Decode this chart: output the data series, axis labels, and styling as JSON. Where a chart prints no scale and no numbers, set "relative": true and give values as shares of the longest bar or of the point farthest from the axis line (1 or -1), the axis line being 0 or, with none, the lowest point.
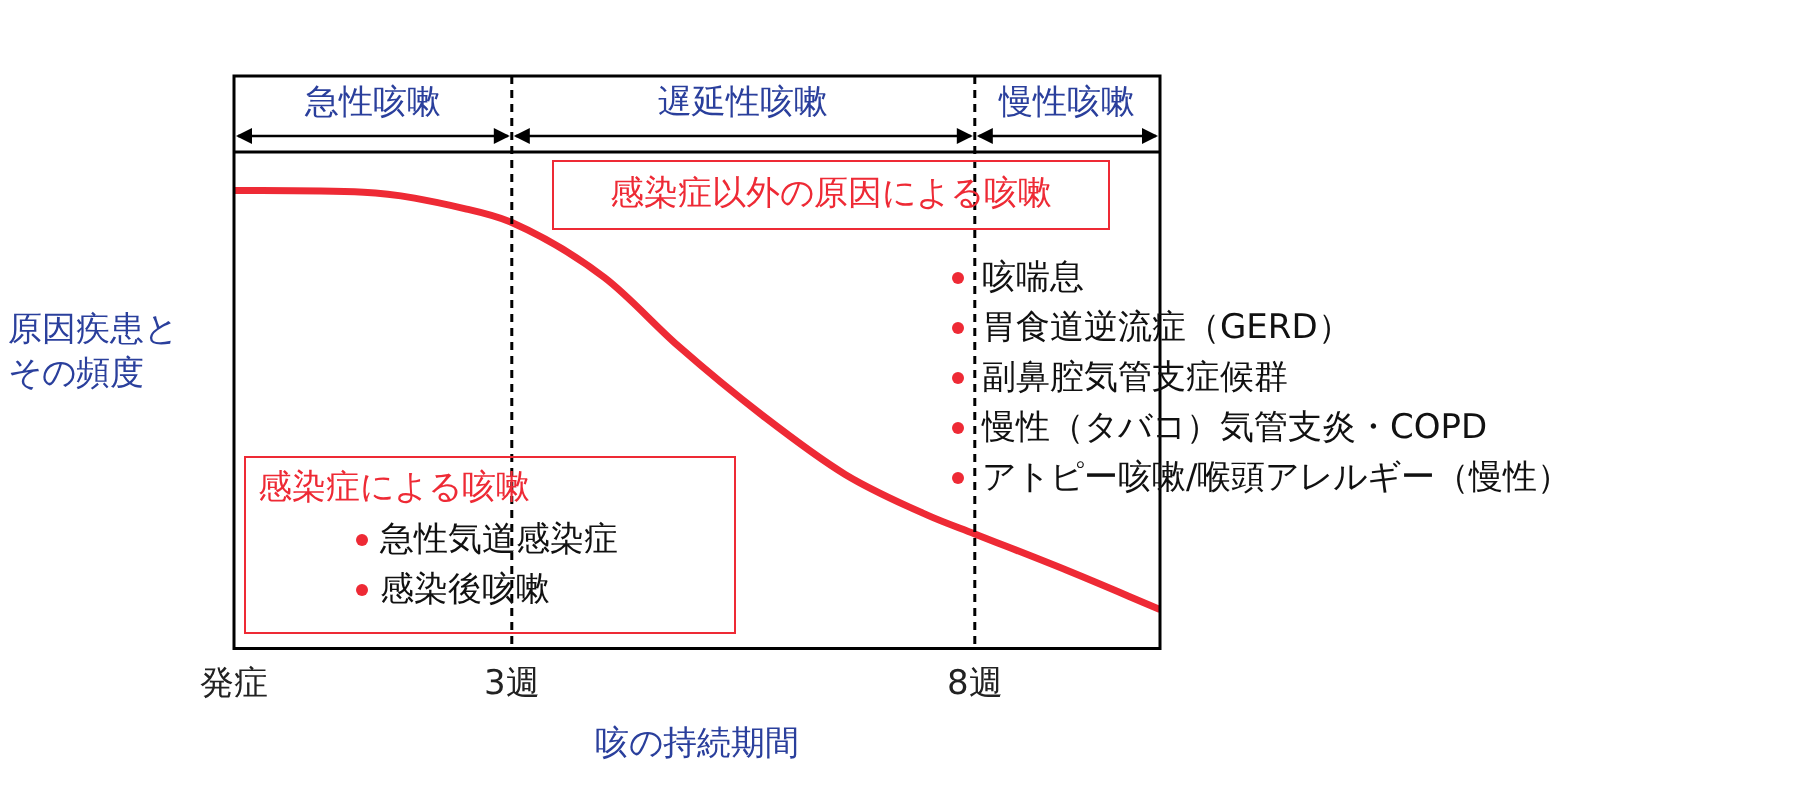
{
  "chart_data": {
    "type": "line",
    "relative": true,
    "xlabel": "咳の持続期間",
    "ylabel": "原因疾患とその頻度",
    "xlim": [
      0,
      10
    ],
    "xticks": [
      {
        "value": 0,
        "label": "発症"
      },
      {
        "value": 3,
        "label": "3週"
      },
      {
        "value": 8,
        "label": "8週"
      }
    ],
    "grid": false,
    "legend": false,
    "marker": "none",
    "line_style": "solid",
    "series": [
      {
        "color": "#ee2a35",
        "x": [
          0,
          1.4,
          2.5,
          3,
          4,
          4.8,
          5.7,
          6.6,
          7.5,
          8,
          9,
          10
        ],
        "values": [
          1,
          0.996,
          0.96,
          0.93,
          0.81,
          0.66,
          0.51,
          0.38,
          0.29,
          0.25,
          0.17,
          0.085
        ]
      }
    ],
    "ref_lines": [
      {
        "axis": "x",
        "value": 3,
        "line_style": "dashed",
        "color": "#000000"
      },
      {
        "axis": "x",
        "value": 8,
        "line_style": "dashed",
        "color": "#000000"
      }
    ],
    "annotations": [
      "急性咳嗽",
      "遅延性咳嗽",
      "慢性咳嗽",
      "感染症以外の原因による咳嗽",
      "咳喘息",
      "胃食道逆流症（GERD）",
      "副鼻腔気管支症候群",
      "慢性（タバコ）気管支炎・COPD",
      "アトピー咳嗽/喉頭アレルギー（慢性）",
      "感染症による咳嗽",
      "急性気道感染症",
      "感染後咳嗽"
    ]
  }
}
